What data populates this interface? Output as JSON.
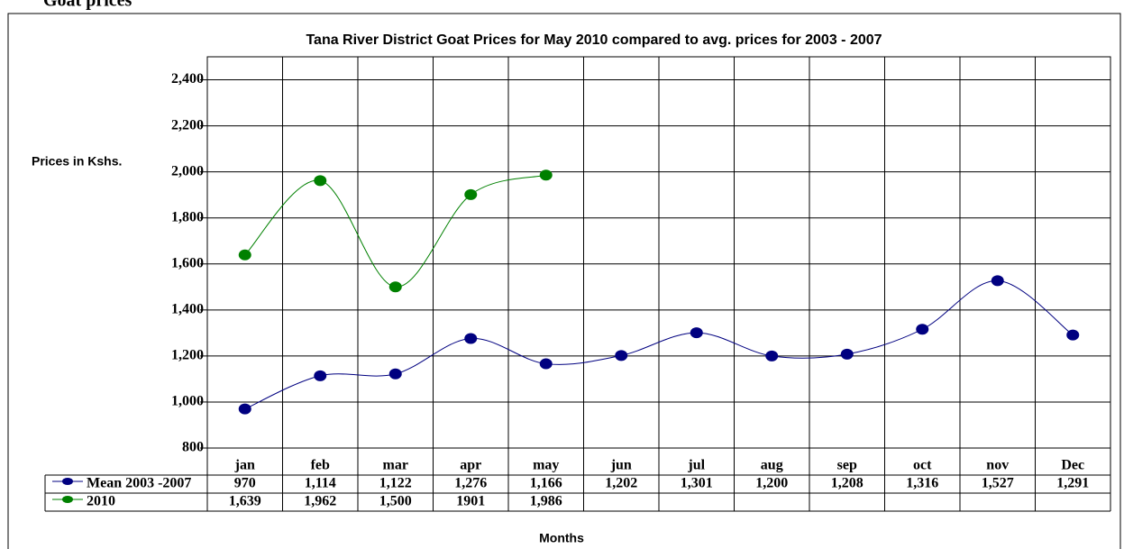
{
  "heading": "Goat prices",
  "chart_data": {
    "type": "line",
    "title": "Tana River District Goat Prices for May 2010 compared to avg. prices for 2003 - 2007",
    "y_label": "Prices in Kshs.",
    "x_label": "Months",
    "categories": [
      "jan",
      "feb",
      "mar",
      "apr",
      "may",
      "jun",
      "jul",
      "aug",
      "sep",
      "oct",
      "nov",
      "Dec"
    ],
    "series": [
      {
        "name": "Mean 2003 -2007",
        "color": "#000080",
        "values": [
          970,
          1114,
          1122,
          1276,
          1166,
          1202,
          1301,
          1200,
          1208,
          1316,
          1527,
          1291
        ],
        "value_labels": [
          "970",
          "1,114",
          "1,122",
          "1,276",
          "1,166",
          "1,202",
          "1,301",
          "1,200",
          "1,208",
          "1,316",
          "1,527",
          "1,291"
        ]
      },
      {
        "name": "2010",
        "color": "#008000",
        "values": [
          1639,
          1962,
          1500,
          1901,
          1986,
          null,
          null,
          null,
          null,
          null,
          null,
          null
        ],
        "value_labels": [
          "1,639",
          "1,962",
          "1,500",
          "1901",
          "1,986",
          null,
          null,
          null,
          null,
          null,
          null,
          null
        ]
      }
    ],
    "ylim": [
      800,
      2500
    ],
    "yticks": [
      {
        "value": 800,
        "label": "800"
      },
      {
        "value": 1000,
        "label": "1,000"
      },
      {
        "value": 1200,
        "label": "1,200"
      },
      {
        "value": 1400,
        "label": "1,400"
      },
      {
        "value": 1600,
        "label": "1,600"
      },
      {
        "value": 1800,
        "label": "1,800"
      },
      {
        "value": 2000,
        "label": "2,000"
      },
      {
        "value": 2200,
        "label": "2,200"
      },
      {
        "value": 2400,
        "label": "2,400"
      }
    ],
    "grid": true
  }
}
